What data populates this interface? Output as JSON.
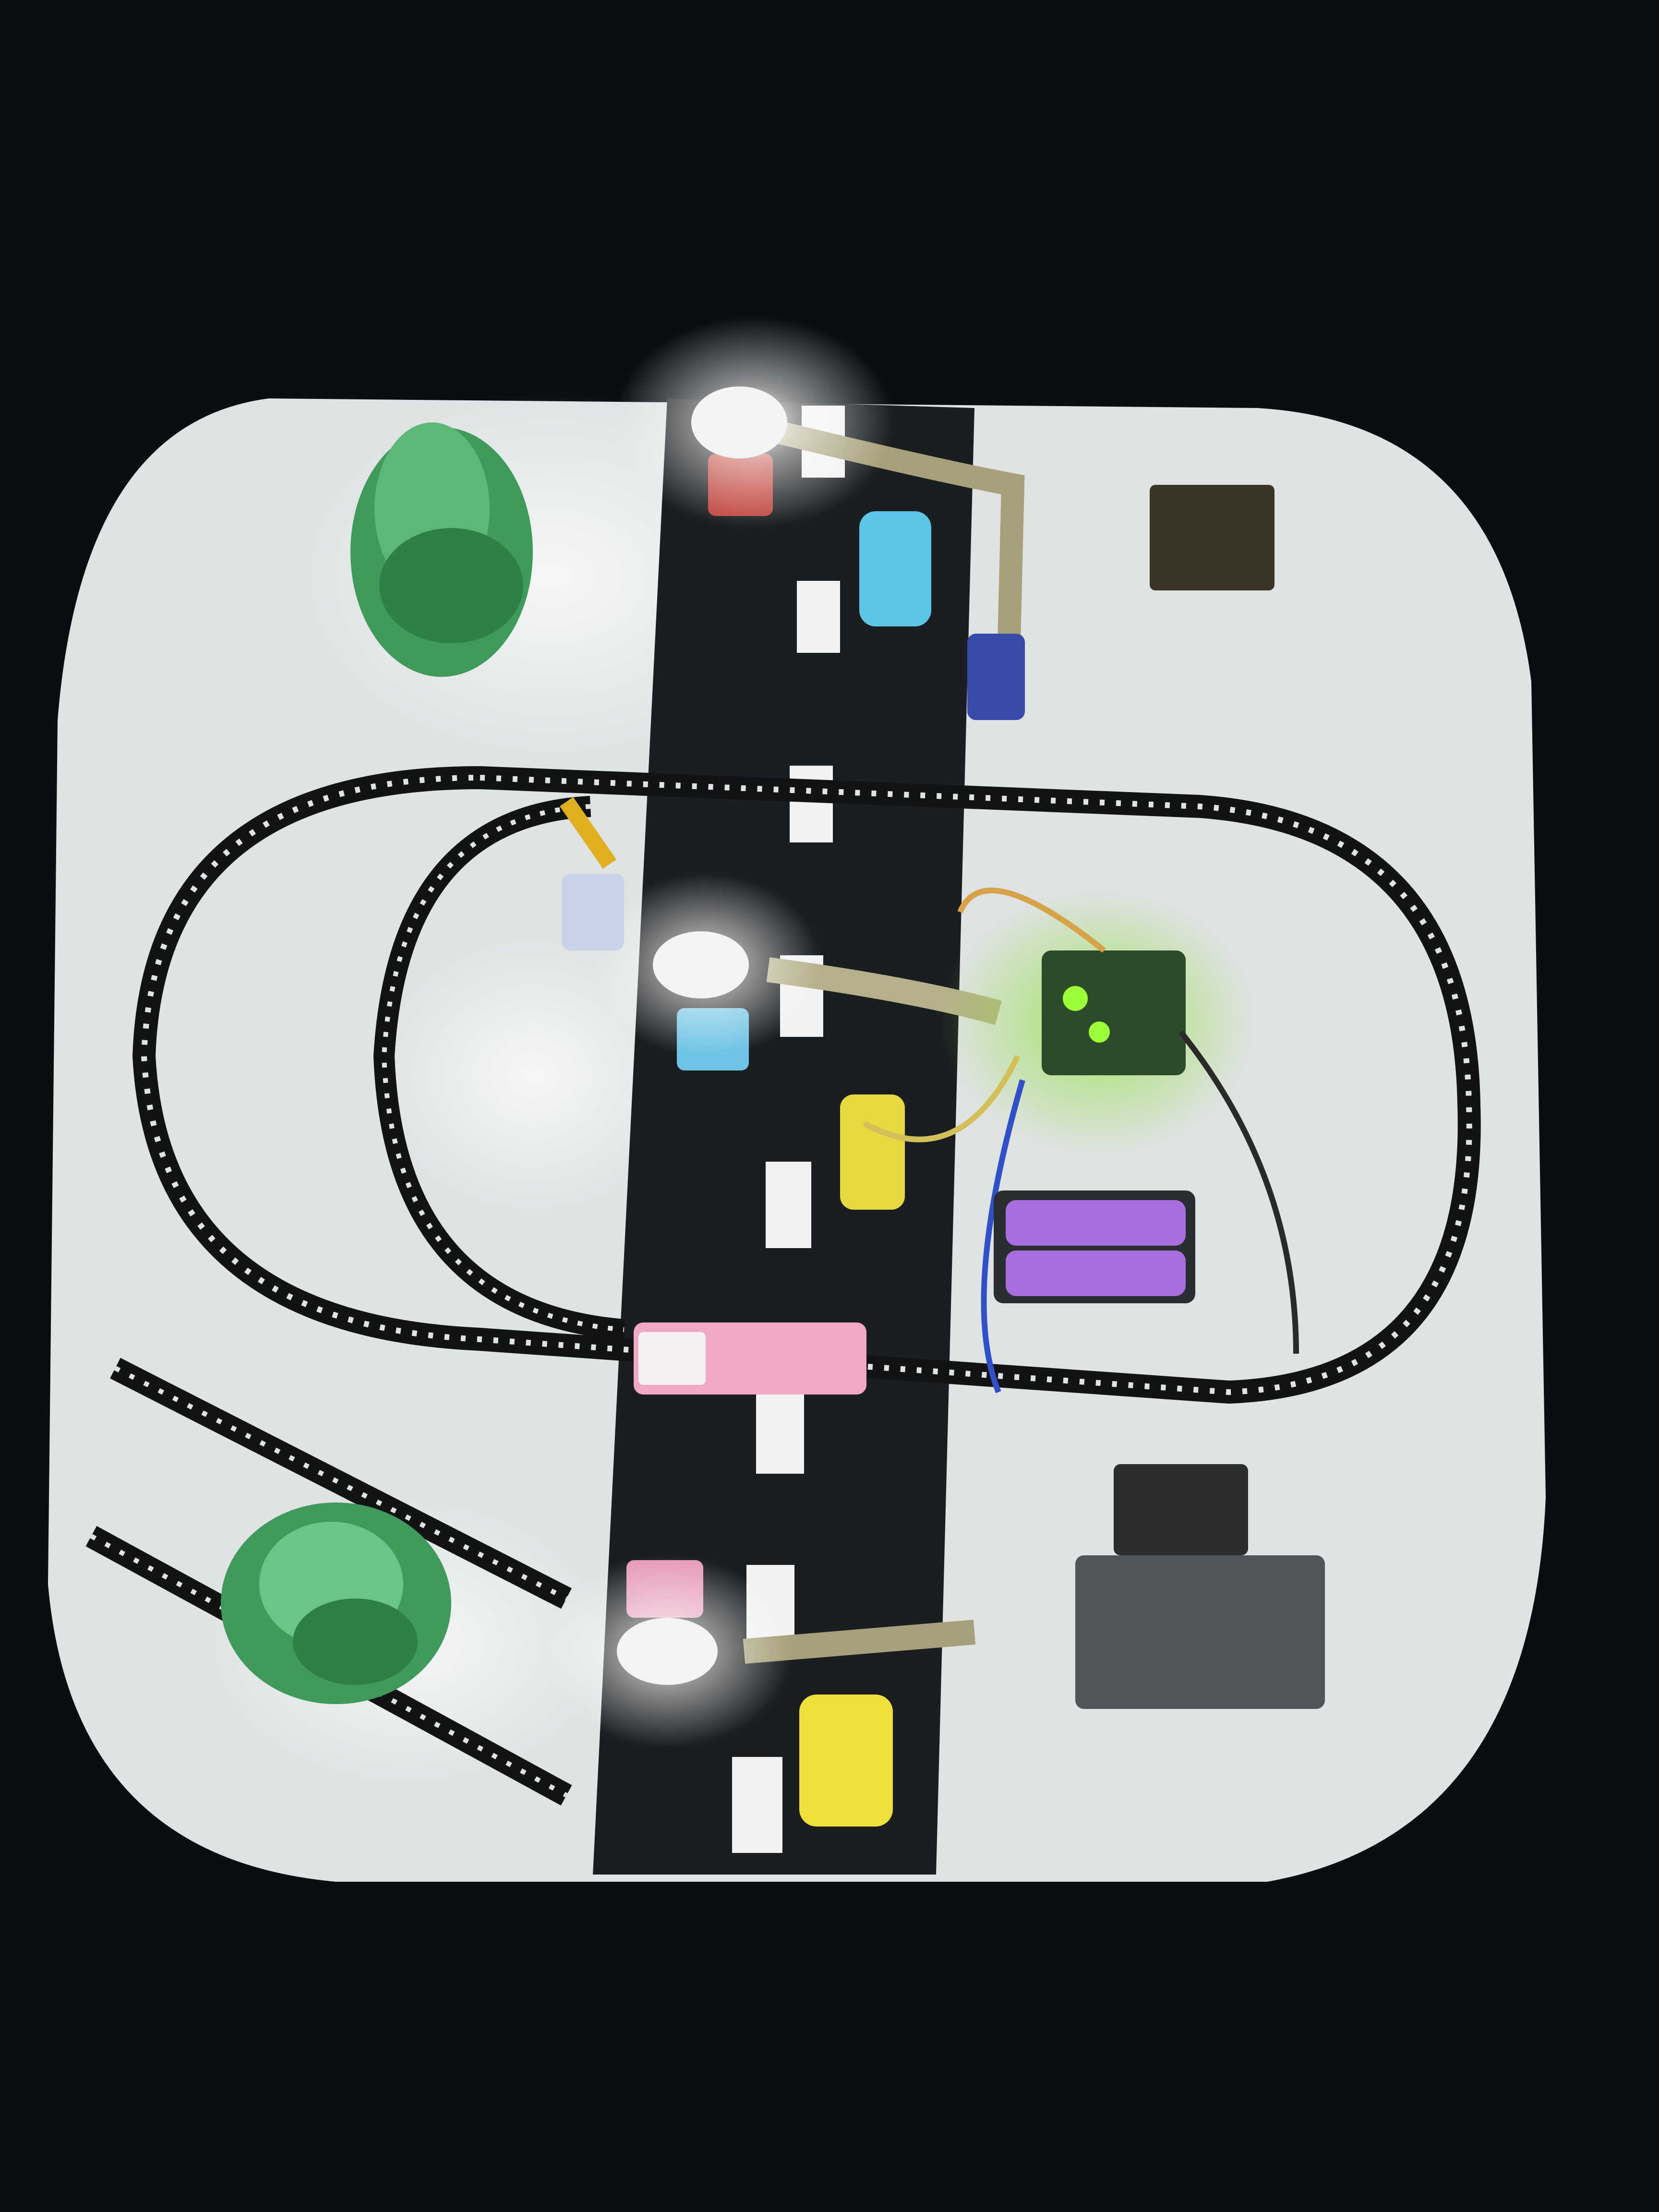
{
  "scene": {
    "background": "#0a0e12",
    "board_color": "#dfe3e4",
    "road_color": "#1b1e21",
    "lane_mark_color": "#f2f2f2",
    "track_color": "#111315",
    "tree_color": "#3f9a5b",
    "lamp_glow": "#ffffff",
    "controller_led": "#9dff3a",
    "battery_color": "#a86ee0"
  },
  "objects": {
    "trees": [
      "tree-top-left",
      "tree-bottom-left"
    ],
    "street_lamps": [
      "lamp-top",
      "lamp-middle",
      "lamp-bottom"
    ],
    "vehicles": [
      {
        "id": "car-red-top",
        "color": "#c0433d"
      },
      {
        "id": "car-blue-top",
        "color": "#5cc6e8"
      },
      {
        "id": "car-blue-middle",
        "color": "#6ec3e4"
      },
      {
        "id": "car-yellow-middle",
        "color": "#e8d840"
      },
      {
        "id": "bus-pink",
        "color": "#f0a8c4"
      },
      {
        "id": "car-pink-bottom",
        "color": "#e59ab8"
      },
      {
        "id": "car-yellow-bottom",
        "color": "#f0de3a"
      }
    ],
    "electronics": [
      "microcontroller-board",
      "battery-pack",
      "motor-driver-box",
      "battery-box-top-right"
    ]
  }
}
